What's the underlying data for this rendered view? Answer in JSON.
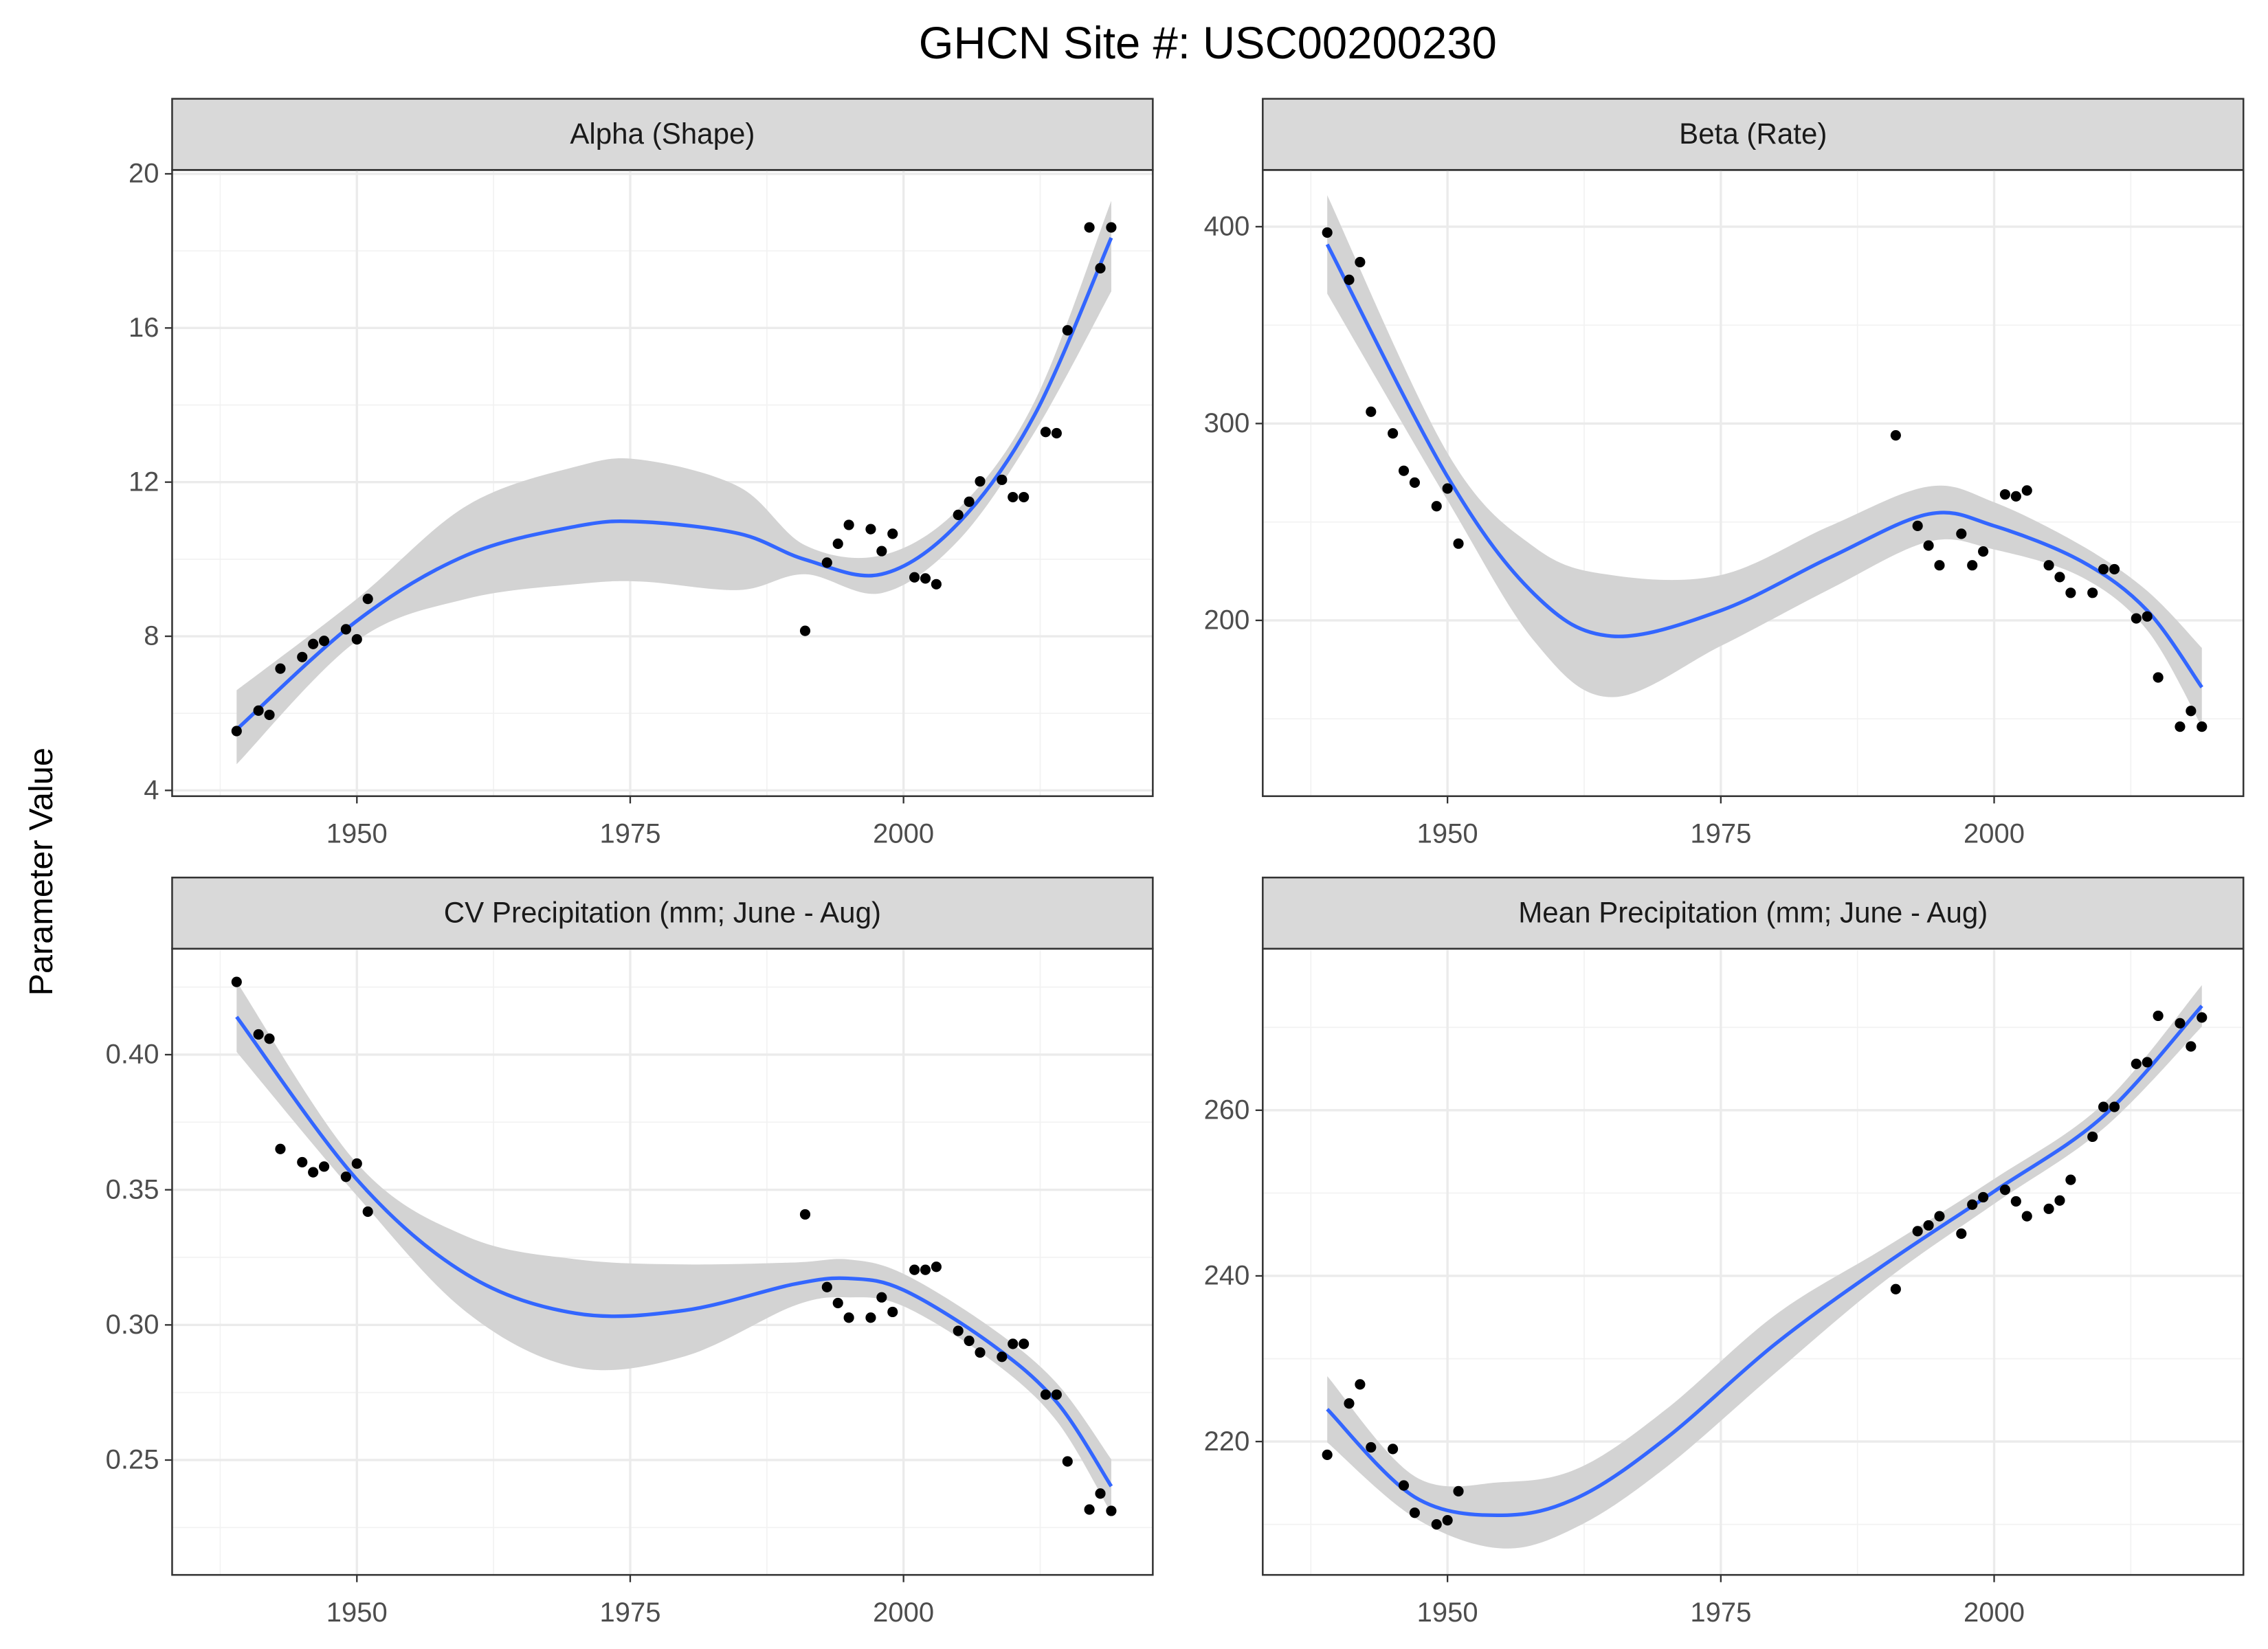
{
  "title": "GHCN Site #: USC00200230",
  "y_label": "Parameter Value",
  "chart_data": [
    {
      "type": "scatter",
      "title": "Alpha (Shape)",
      "color": "#000000",
      "grid": true,
      "x": [
        1939,
        1941,
        1942,
        1943,
        1945,
        1946,
        1947,
        1949,
        1950,
        1951,
        1991,
        1993,
        1994,
        1995,
        1997,
        1998,
        1999,
        2001,
        2002,
        2003,
        2005,
        2006,
        2007,
        2009,
        2010,
        2011,
        2013,
        2014,
        2015,
        2017,
        2018,
        2019
      ],
      "values": [
        5.54,
        6.07,
        5.96,
        7.16,
        7.46,
        7.8,
        7.88,
        8.18,
        7.92,
        8.97,
        8.14,
        9.91,
        10.4,
        10.89,
        10.78,
        10.21,
        10.66,
        9.53,
        9.5,
        9.35,
        11.15,
        11.49,
        12.02,
        12.06,
        11.61,
        11.61,
        13.3,
        13.27,
        15.94,
        18.61,
        17.55,
        18.61
      ],
      "smooth": {
        "color": "#3366ff",
        "fill": "#d3d3d3",
        "x": [
          1939,
          1950,
          1960,
          1970,
          1976,
          1985,
          1991,
          1998,
          2005,
          2012,
          2019
        ],
        "values": [
          5.58,
          8.4,
          10.1,
          10.85,
          10.97,
          10.66,
          9.99,
          9.61,
          10.93,
          13.75,
          18.34
        ],
        "lower": [
          4.68,
          7.88,
          8.97,
          9.35,
          9.42,
          9.2,
          9.61,
          9.12,
          10.48,
          13.3,
          16.95
        ],
        "upper": [
          6.6,
          8.97,
          11.38,
          12.4,
          12.58,
          11.87,
          10.36,
          10.1,
          11.3,
          14.1,
          19.3
        ]
      },
      "xlim": [
        1933.1,
        2022.8
      ],
      "ylim": [
        3.85,
        20.1
      ],
      "xticks": [
        1950,
        1975,
        2000
      ],
      "yticks": [
        4,
        8,
        12,
        16,
        20
      ],
      "xminor": [
        1937.5,
        1962.5,
        1987.5,
        2012.5
      ],
      "yminor": [
        6,
        10,
        14,
        18
      ]
    },
    {
      "type": "scatter",
      "title": "Beta (Rate)",
      "color": "#000000",
      "grid": true,
      "x": [
        1939,
        1941,
        1942,
        1943,
        1945,
        1946,
        1947,
        1949,
        1950,
        1951,
        1991,
        1993,
        1994,
        1995,
        1997,
        1998,
        1999,
        2001,
        2002,
        2003,
        2005,
        2006,
        2007,
        2009,
        2010,
        2011,
        2013,
        2014,
        2015,
        2017,
        2018,
        2019
      ],
      "values": [
        397,
        373,
        382,
        306,
        295,
        276,
        270,
        258,
        267,
        239,
        294,
        248,
        238,
        228,
        244,
        228,
        235,
        264,
        263,
        266,
        228,
        222,
        214,
        214,
        226,
        226,
        201,
        202,
        171,
        146,
        154,
        146
      ],
      "smooth": {
        "color": "#3366ff",
        "fill": "#d3d3d3",
        "x": [
          1939,
          1950,
          1958,
          1965,
          1975,
          1985,
          1994,
          2000,
          2008,
          2014,
          2019
        ],
        "values": [
          391,
          273,
          213,
          192,
          205,
          232,
          254,
          248,
          230,
          205,
          166
        ],
        "lower": [
          366,
          261,
          189,
          161,
          187,
          216,
          240,
          236,
          222,
          195,
          146
        ],
        "upper": [
          416,
          285,
          237,
          223,
          223,
          248,
          268,
          260,
          238,
          215,
          186
        ]
      },
      "xlim": [
        1933.1,
        2022.8
      ],
      "ylim": [
        110.7,
        428.8
      ],
      "xticks": [
        1950,
        1975,
        2000
      ],
      "yticks": [
        200,
        300,
        400
      ],
      "xminor": [
        1937.5,
        1962.5,
        1987.5,
        2012.5
      ],
      "yminor": [
        150,
        250,
        350
      ]
    },
    {
      "type": "scatter",
      "title": "CV Precipitation (mm; June - Aug)",
      "color": "#000000",
      "grid": true,
      "x": [
        1939,
        1941,
        1942,
        1943,
        1945,
        1946,
        1947,
        1949,
        1950,
        1951,
        1991,
        1993,
        1994,
        1995,
        1997,
        1998,
        1999,
        2001,
        2002,
        2003,
        2005,
        2006,
        2007,
        2009,
        2010,
        2011,
        2013,
        2014,
        2015,
        2017,
        2018,
        2019
      ],
      "values": [
        0.4269,
        0.4075,
        0.4059,
        0.3651,
        0.3602,
        0.3565,
        0.3586,
        0.3548,
        0.3597,
        0.3419,
        0.3409,
        0.314,
        0.3081,
        0.3027,
        0.3027,
        0.3102,
        0.3048,
        0.3204,
        0.3204,
        0.3215,
        0.2978,
        0.2941,
        0.2898,
        0.2882,
        0.293,
        0.293,
        0.2742,
        0.2742,
        0.2495,
        0.2317,
        0.2376,
        0.2312
      ],
      "smooth": {
        "color": "#3366ff",
        "fill": "#d3d3d3",
        "x": [
          1939,
          1950,
          1960,
          1970,
          1980,
          1990,
          1995,
          2000,
          2008,
          2014,
          2019
        ],
        "values": [
          0.414,
          0.3538,
          0.3188,
          0.3043,
          0.3054,
          0.3151,
          0.3172,
          0.3129,
          0.293,
          0.2715,
          0.2403
        ],
        "lower": [
          0.401,
          0.3478,
          0.3048,
          0.2843,
          0.2884,
          0.3071,
          0.3102,
          0.3069,
          0.287,
          0.2645,
          0.2303
        ],
        "upper": [
          0.427,
          0.3598,
          0.3328,
          0.3243,
          0.3224,
          0.3231,
          0.3242,
          0.3189,
          0.299,
          0.2785,
          0.2503
        ]
      },
      "xlim": [
        1933.1,
        2022.8
      ],
      "ylim": [
        0.2075,
        0.4392
      ],
      "xticks": [
        1950,
        1975,
        2000
      ],
      "yticks": [
        0.25,
        {
          "value": 0.3,
          "label": "0.30"
        },
        0.35,
        {
          "value": 0.4,
          "label": "0.40"
        }
      ],
      "xminor": [
        1937.5,
        1962.5,
        1987.5,
        2012.5
      ],
      "yminor": [
        0.225,
        0.275,
        0.325,
        0.375,
        0.425
      ]
    },
    {
      "type": "scatter",
      "title": "Mean Precipitation (mm; June - Aug)",
      "color": "#000000",
      "grid": true,
      "x": [
        1939,
        1941,
        1942,
        1943,
        1945,
        1946,
        1947,
        1949,
        1950,
        1951,
        1991,
        1993,
        1994,
        1995,
        1997,
        1998,
        1999,
        2001,
        2002,
        2003,
        2005,
        2006,
        2007,
        2009,
        2010,
        2011,
        2013,
        2014,
        2015,
        2017,
        2018,
        2019
      ],
      "values": [
        218.4,
        224.6,
        226.9,
        219.3,
        219.1,
        214.7,
        211.4,
        210,
        210.5,
        214,
        238.4,
        245.4,
        246.1,
        247.2,
        245.1,
        248.6,
        249.5,
        250.4,
        249,
        247.2,
        248.1,
        249.1,
        251.6,
        256.8,
        260.4,
        260.4,
        265.6,
        265.8,
        271.4,
        270.5,
        267.7,
        271.2
      ],
      "smooth": {
        "color": "#3366ff",
        "fill": "#d3d3d3",
        "x": [
          1939,
          1947,
          1955,
          1962,
          1970,
          1980,
          1990,
          2000,
          2010,
          2019
        ],
        "values": [
          223.9,
          213.3,
          211.1,
          213.3,
          220.4,
          231.8,
          241.4,
          250.2,
          259.3,
          272.6
        ],
        "lower": [
          219.9,
          210.8,
          207.1,
          209.8,
          216.9,
          228.3,
          239.4,
          248.7,
          257.8,
          270.1
        ],
        "upper": [
          227.9,
          215.8,
          215.1,
          216.8,
          223.9,
          235.3,
          243.4,
          251.7,
          260.8,
          275.1
        ]
      },
      "xlim": [
        1933.1,
        2022.8
      ],
      "ylim": [
        203.9,
        279.5
      ],
      "xticks": [
        1950,
        1975,
        2000
      ],
      "yticks": [
        220,
        240,
        260
      ],
      "xminor": [
        1937.5,
        1962.5,
        1987.5,
        2012.5
      ],
      "yminor": [
        210,
        230,
        250,
        270
      ]
    }
  ]
}
